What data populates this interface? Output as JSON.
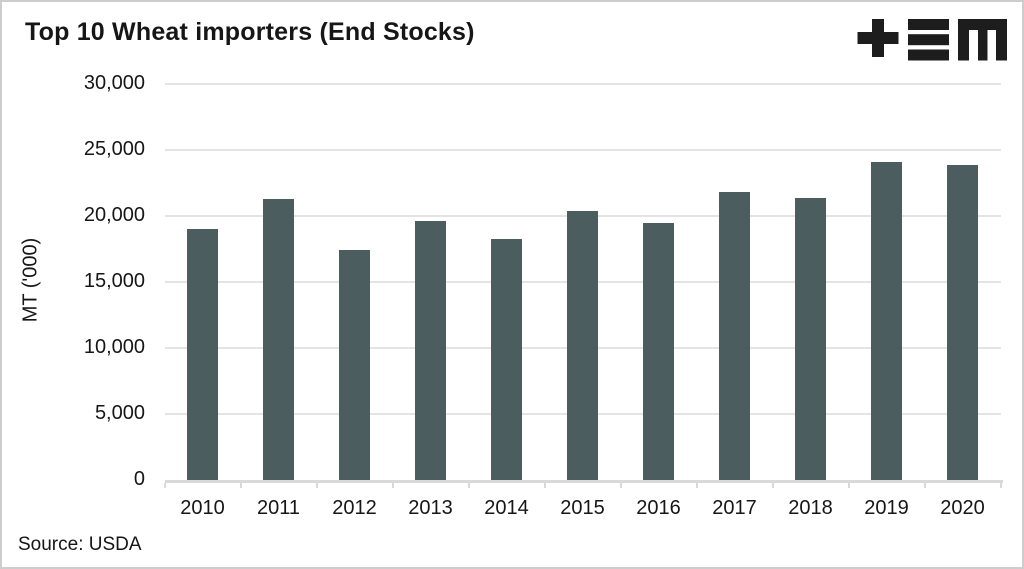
{
  "header": {
    "title": "Top 10 Wheat importers (End Stocks)",
    "logo": {
      "name": "brand-logo",
      "glyphs": "+≡M",
      "color": "#1d1d1d"
    }
  },
  "footer": {
    "source": "Source: USDA"
  },
  "colors": {
    "bar": "#4c5d5f",
    "grid": "#e4e4e4",
    "axis": "#d9d9d9",
    "text": "#161616",
    "card_border": "#cdcdcd",
    "background": "#ffffff"
  },
  "chart_data": {
    "type": "bar",
    "title": "Top 10 Wheat importers (End Stocks)",
    "categories": [
      "2010",
      "2011",
      "2012",
      "2013",
      "2014",
      "2015",
      "2016",
      "2017",
      "2018",
      "2019",
      "2020"
    ],
    "values": [
      19050,
      21300,
      17450,
      19600,
      18250,
      20350,
      19450,
      21800,
      21350,
      24100,
      23900
    ],
    "xlabel": "",
    "ylabel": "MT ('000)",
    "ylim": [
      0,
      30000
    ],
    "ytick_step": 5000,
    "ytick_labels": [
      "0",
      "5,000",
      "10,000",
      "15,000",
      "20,000",
      "25,000",
      "30,000"
    ],
    "grid": true,
    "legend": "none",
    "bar_color": "#4c5d5f",
    "source": "Source: USDA"
  }
}
